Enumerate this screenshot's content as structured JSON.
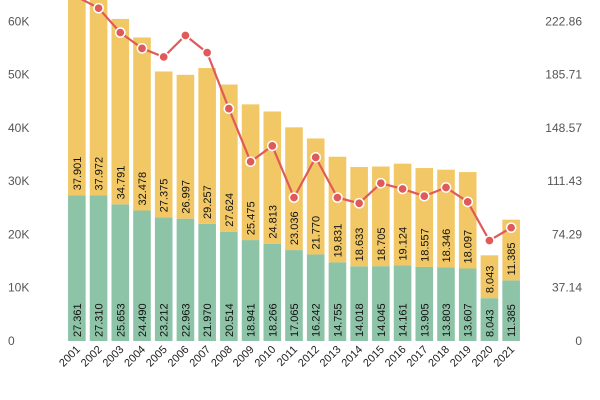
{
  "chart_data": {
    "type": "bar",
    "stacked": true,
    "categories": [
      "2001",
      "2002",
      "2003",
      "2004",
      "2005",
      "2006",
      "2007",
      "2008",
      "2009",
      "2010",
      "2011",
      "2012",
      "2013",
      "2014",
      "2015",
      "2016",
      "2017",
      "2018",
      "2019",
      "2020",
      "2021"
    ],
    "series": [
      {
        "color": "#8dc3a7",
        "values": [
          27361,
          27310,
          25653,
          24490,
          23212,
          22963,
          21970,
          20514,
          18941,
          18266,
          17065,
          16242,
          14755,
          14018,
          14045,
          14161,
          13905,
          13803,
          13607,
          8043,
          11385
        ],
        "labels": [
          "27.361",
          "27.310",
          "25.653",
          "24.490",
          "23.212",
          "22.963",
          "21.970",
          "20.514",
          "18.941",
          "18.266",
          "17.065",
          "16.242",
          "14.755",
          "14.018",
          "14.045",
          "14.161",
          "13.905",
          "13.803",
          "13.607",
          "8.043",
          "11.385"
        ]
      },
      {
        "color": "#f1c865",
        "values": [
          37901,
          37972,
          34791,
          32478,
          27375,
          26997,
          29257,
          27624,
          25475,
          24813,
          23036,
          21770,
          19831,
          18633,
          18705,
          19124,
          18557,
          18346,
          18097,
          8043,
          11385
        ],
        "labels": [
          "37.901",
          "37.972",
          "34.791",
          "32.478",
          "27.375",
          "26.997",
          "29.257",
          "27.624",
          "25.475",
          "24.813",
          "23.036",
          "21.770",
          "19.831",
          "18.633",
          "18.705",
          "19.124",
          "18.557",
          "18.346",
          "18.097",
          "8.043",
          "11.385"
        ]
      }
    ],
    "line_series": {
      "color": "#e05a5a",
      "axis": "right",
      "values": [
        240,
        232,
        215,
        204,
        198,
        213,
        201,
        162,
        125,
        136,
        100,
        128,
        100,
        96,
        110,
        106,
        101,
        107,
        97,
        70,
        79
      ]
    },
    "y_left": {
      "ylim": [
        0,
        64000
      ],
      "ticks": [
        0,
        10000,
        20000,
        30000,
        40000,
        50000,
        60000
      ],
      "tick_labels": [
        "0",
        "10K",
        "20K",
        "30K",
        "40K",
        "50K",
        "60K"
      ]
    },
    "y_right": {
      "ylim": [
        0,
        237.7
      ],
      "ticks": [
        0,
        37.14,
        74.29,
        111.43,
        148.57,
        185.71,
        222.86
      ],
      "tick_labels": [
        "0",
        "37.14",
        "74.29",
        "111.43",
        "148.57",
        "185.71",
        "222.86"
      ]
    },
    "grid": false,
    "legend": "none"
  }
}
